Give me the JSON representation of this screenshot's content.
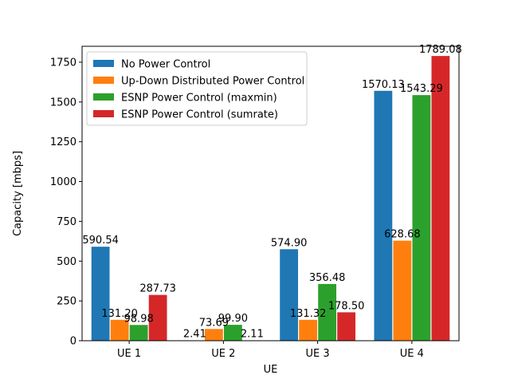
{
  "chart_data": {
    "type": "bar",
    "categories": [
      "UE 1",
      "UE 2",
      "UE 3",
      "UE 4"
    ],
    "xlabel": "UE",
    "ylabel": "Capacity [mbps]",
    "ylim": [
      0,
      1850
    ],
    "yticks": [
      0,
      250,
      500,
      750,
      1000,
      1250,
      1500,
      1750
    ],
    "grid": false,
    "legend_position": "top-left",
    "series": [
      {
        "name": "No Power Control",
        "color": "#1f77b4",
        "values": [
          590.54,
          2.41,
          574.9,
          1570.13
        ],
        "labels": [
          "590.54",
          "2.41",
          "574.90",
          "1570.13"
        ]
      },
      {
        "name": "Up-Down Distributed Power Control",
        "color": "#ff7f0e",
        "values": [
          131.2,
          73.69,
          131.32,
          628.68
        ],
        "labels": [
          "131.20",
          "73.69",
          "131.32",
          "628.68"
        ]
      },
      {
        "name": "ESNP Power Control (maxmin)",
        "color": "#2ca02c",
        "values": [
          98.98,
          99.9,
          356.48,
          1543.29
        ],
        "labels": [
          "98.98",
          "99.90",
          "356.48",
          "1543.29"
        ]
      },
      {
        "name": "ESNP Power Control (sumrate)",
        "color": "#d62728",
        "values": [
          287.73,
          2.11,
          178.5,
          1789.08
        ],
        "labels": [
          "287.73",
          "2.11",
          "178.50",
          "1789.08"
        ]
      }
    ]
  }
}
